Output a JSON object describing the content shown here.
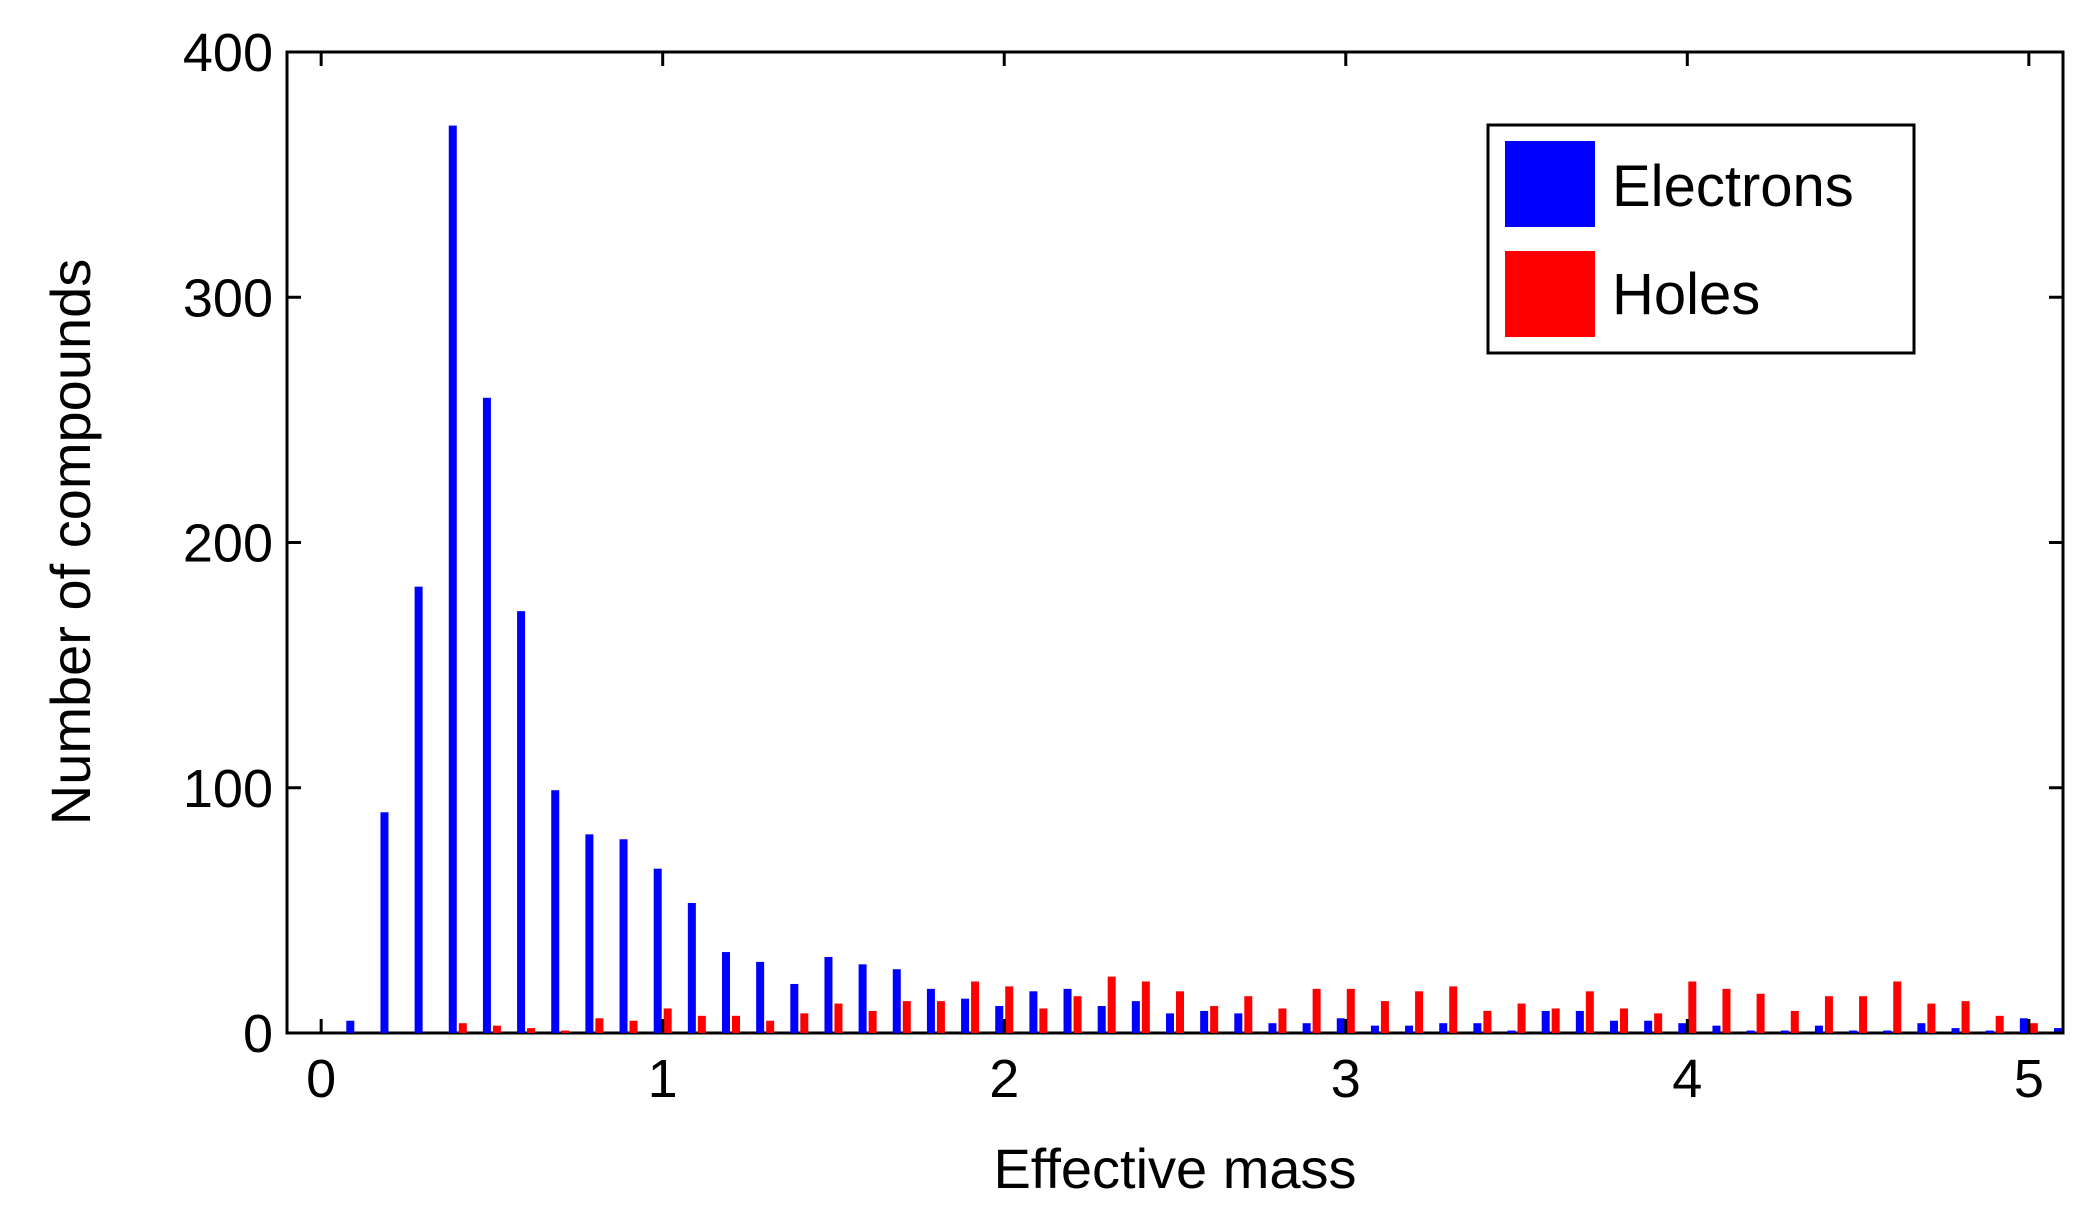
{
  "chart_data": {
    "type": "bar",
    "title": "",
    "xlabel": "Effective mass",
    "ylabel": "Number of compounds",
    "xlim": [
      -0.1,
      5.1
    ],
    "ylim": [
      0,
      400
    ],
    "xticks": [
      0,
      1,
      2,
      3,
      4,
      5
    ],
    "yticks": [
      0,
      100,
      200,
      300,
      400
    ],
    "grid": false,
    "legend_position": "top-right",
    "bin_centers": [
      0.1,
      0.2,
      0.3,
      0.4,
      0.5,
      0.6,
      0.7,
      0.8,
      0.9,
      1.0,
      1.1,
      1.2,
      1.3,
      1.4,
      1.5,
      1.6,
      1.7,
      1.8,
      1.9,
      2.0,
      2.1,
      2.2,
      2.3,
      2.4,
      2.5,
      2.6,
      2.7,
      2.8,
      2.9,
      3.0,
      3.1,
      3.2,
      3.3,
      3.4,
      3.5,
      3.6,
      3.7,
      3.8,
      3.9,
      4.0,
      4.1,
      4.2,
      4.3,
      4.4,
      4.5,
      4.6,
      4.7,
      4.8,
      4.9,
      5.0,
      5.1
    ],
    "series": [
      {
        "name": "Electrons",
        "color": "#0000ff",
        "values": [
          5,
          90,
          182,
          370,
          259,
          172,
          99,
          81,
          79,
          67,
          53,
          33,
          29,
          20,
          31,
          28,
          26,
          18,
          14,
          11,
          17,
          18,
          11,
          13,
          8,
          9,
          8,
          4,
          4,
          6,
          3,
          3,
          4,
          4,
          1,
          9,
          9,
          5,
          5,
          4,
          3,
          1,
          1,
          3,
          1,
          1,
          4,
          2,
          1,
          6,
          2
        ]
      },
      {
        "name": "Holes",
        "color": "#ff0000",
        "values": [
          0,
          0,
          0,
          4,
          3,
          2,
          1,
          6,
          5,
          10,
          7,
          7,
          5,
          8,
          12,
          9,
          13,
          13,
          21,
          19,
          10,
          15,
          23,
          21,
          17,
          11,
          15,
          10,
          18,
          18,
          13,
          17,
          19,
          9,
          12,
          10,
          17,
          10,
          8,
          21,
          18,
          16,
          9,
          15,
          15,
          21,
          12,
          13,
          7,
          4,
          0
        ]
      }
    ]
  }
}
